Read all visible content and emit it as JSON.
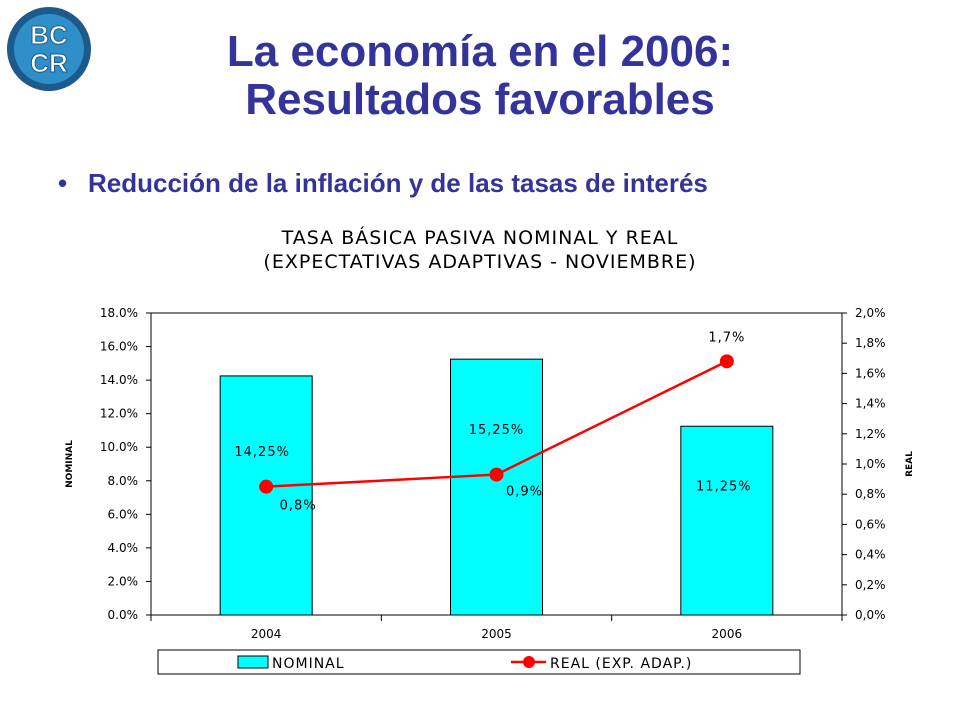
{
  "logo": {
    "text_top": "BC",
    "text_bottom": "CR",
    "colors": {
      "ring": "#1c5a8c",
      "inner": "#2f8fc9",
      "letters": "#ffffff"
    }
  },
  "slide": {
    "title_line1": "La economía en el 2006:",
    "title_line2": "Resultados favorables",
    "bullet": "Reducción de la inflación y de las tasas de interés",
    "bullet_symbol": "•"
  },
  "colors": {
    "title": "#333399",
    "bar": "#00ffff",
    "line": "#ff0000"
  },
  "chart_data": {
    "type": "bar",
    "title_line1": "TASA BÁSICA PASIVA NOMINAL Y REAL",
    "title_line2": "(EXPECTATIVAS ADAPTIVAS - NOVIEMBRE)",
    "categories": [
      "2004",
      "2005",
      "2006"
    ],
    "series": [
      {
        "name": "NOMINAL",
        "type": "bar",
        "axis": "left",
        "values": [
          14.25,
          15.25,
          11.25
        ],
        "labels": [
          "14,25%",
          "15,25%",
          "11,25%"
        ]
      },
      {
        "name": "REAL (EXP. ADAP.)",
        "type": "line",
        "axis": "right",
        "values": [
          0.85,
          0.93,
          1.68
        ],
        "labels": [
          "0,8%",
          "0,9%",
          "1,7%"
        ]
      }
    ],
    "ylabel": "NOMINAL",
    "y2label": "REAL",
    "ylim": [
      0,
      18
    ],
    "y2lim": [
      0,
      2
    ],
    "yticks": [
      "0.0%",
      "2.0%",
      "4.0%",
      "6.0%",
      "8.0%",
      "10.0%",
      "12.0%",
      "14.0%",
      "16.0%",
      "18.0%"
    ],
    "y2ticks": [
      "0,0%",
      "0,2%",
      "0,4%",
      "0,6%",
      "0,8%",
      "1,0%",
      "1,2%",
      "1,4%",
      "1,6%",
      "1,8%",
      "2,0%"
    ],
    "grid": false,
    "legend": "bottom"
  }
}
